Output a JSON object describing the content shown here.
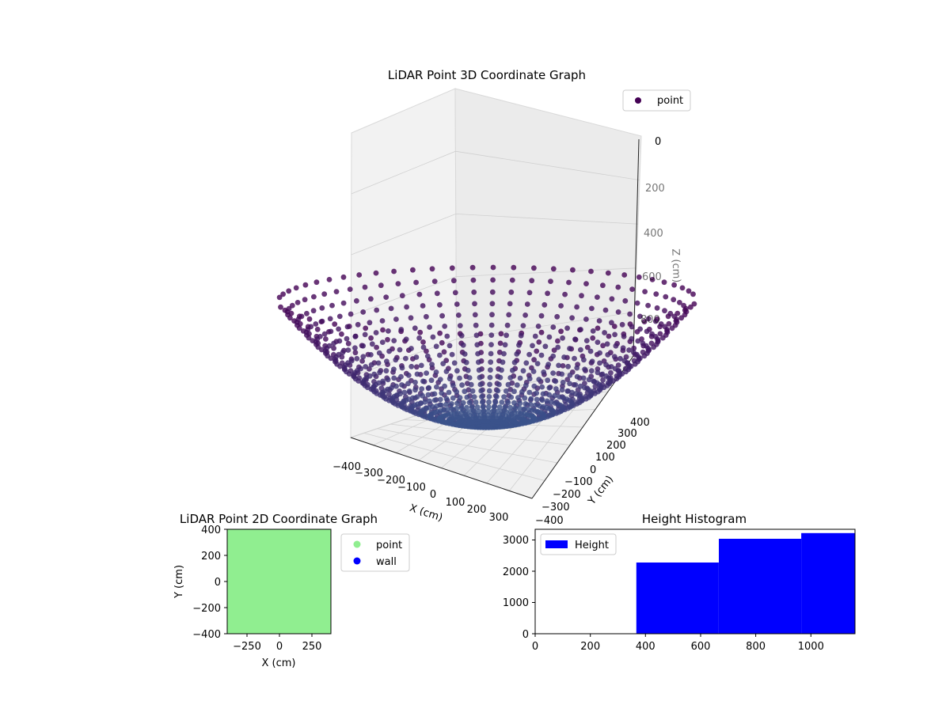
{
  "colors": {
    "point_3d_dark": "#440154",
    "point_3d_mid": "#3b528b",
    "point_2d": "#90ee90",
    "wall_2d": "#0000ff",
    "histogram": "#0000ff"
  },
  "chart_data": [
    {
      "type": "scatter",
      "projection": "3d",
      "title": "LiDAR Point 3D Coordinate Graph",
      "xlabel": "X (cm)",
      "ylabel": "Y (cm)",
      "zlabel": "Z (cm)",
      "x_ticks": [
        "−400",
        "−300",
        "−200",
        "−100",
        "0",
        "100",
        "200",
        "300"
      ],
      "y_ticks": [
        "400",
        "300",
        "200",
        "100",
        "0",
        "−100",
        "−200",
        "−300",
        "−400"
      ],
      "z_ticks": [
        "0",
        "200",
        "400",
        "600",
        "800"
      ],
      "xlim": [
        -400,
        400
      ],
      "ylim": [
        -400,
        400
      ],
      "zlim": [
        -900,
        0
      ],
      "legend": {
        "position": "top-right",
        "entries": [
          "point"
        ]
      },
      "colormap": "viridis",
      "surface": {
        "shape": "bowl",
        "rim_radius": 400,
        "rim_z": 0,
        "bottom_z": -900
      }
    },
    {
      "type": "scatter",
      "title": "LiDAR Point 2D Coordinate Graph",
      "xlabel": "X (cm)",
      "ylabel": "Y (cm)",
      "xlim": [
        -400,
        400
      ],
      "ylim": [
        -400,
        400
      ],
      "x_ticks": [
        "−250",
        "0",
        "250"
      ],
      "y_ticks": [
        "400",
        "200",
        "0",
        "−200",
        "−400"
      ],
      "legend": {
        "position": "outside-right",
        "entries": [
          "point",
          "wall"
        ]
      },
      "point_fill_extent": {
        "x": [
          -400,
          400
        ],
        "y": [
          -400,
          400
        ]
      }
    },
    {
      "type": "bar",
      "title": "Height Histogram",
      "legend": {
        "position": "top-left",
        "entries": [
          "Height"
        ]
      },
      "xlim": [
        0,
        1160
      ],
      "ylim": [
        0,
        3300
      ],
      "x_ticks": [
        "0",
        "200",
        "400",
        "600",
        "800",
        "1000"
      ],
      "y_ticks": [
        "0",
        "1000",
        "2000",
        "3000"
      ],
      "bins": [
        {
          "start": 367,
          "end": 666,
          "count": 2250
        },
        {
          "start": 666,
          "end": 965,
          "count": 3000
        },
        {
          "start": 965,
          "end": 1160,
          "count": 3180
        }
      ]
    }
  ]
}
